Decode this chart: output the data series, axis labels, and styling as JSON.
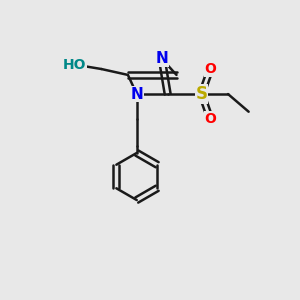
{
  "bg_color": "#e8e8e8",
  "bond_color": "#1a1a1a",
  "bond_width": 1.8,
  "fig_width": 3.0,
  "fig_height": 3.0,
  "dpi": 100,
  "labels": {
    "N1": {
      "text": "N",
      "color": "#0000ee",
      "fontsize": 11
    },
    "N3": {
      "text": "N",
      "color": "#0000ee",
      "fontsize": 11
    },
    "S": {
      "text": "S",
      "color": "#bbaa00",
      "fontsize": 12
    },
    "O_top": {
      "text": "O",
      "color": "#ff0000",
      "fontsize": 10
    },
    "O_bot": {
      "text": "O",
      "color": "#ff0000",
      "fontsize": 10
    },
    "HO": {
      "text": "HO",
      "color": "#008888",
      "fontsize": 10
    }
  }
}
